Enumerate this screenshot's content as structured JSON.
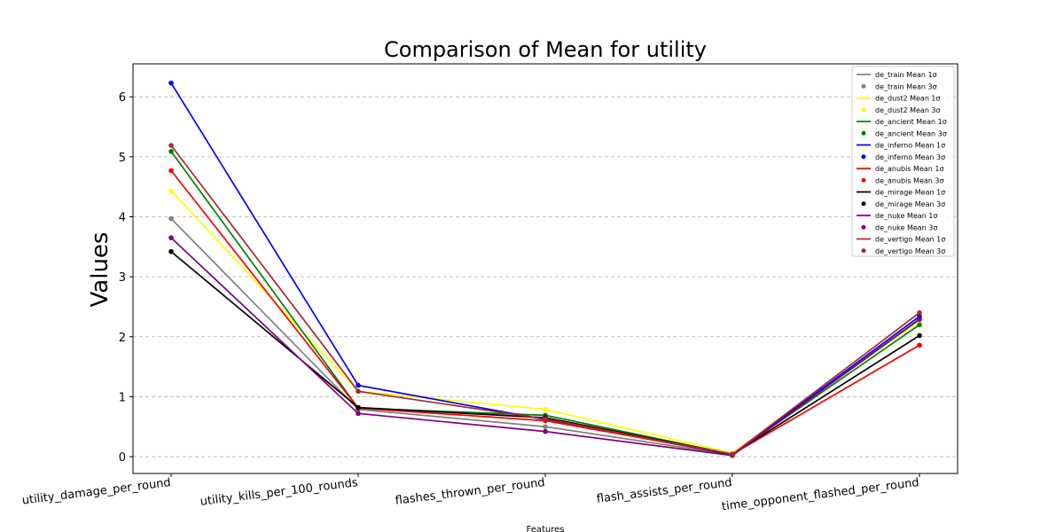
{
  "chart_data": {
    "type": "line",
    "title": "Comparison of Mean for utility",
    "xlabel": "Features",
    "ylabel": "Values",
    "categories": [
      "utility_damage_per_round",
      "utility_kills_per_100_rounds",
      "flashes_thrown_per_round",
      "flash_assists_per_round",
      "time_opponent_flashed_per_round"
    ],
    "ylim": [
      -0.28,
      6.55
    ],
    "yticks": [
      0,
      1,
      2,
      3,
      4,
      5,
      6
    ],
    "grid": "horizontal dashed",
    "legend_position": "top-right",
    "series": [
      {
        "name": "de_train",
        "color": "#808080",
        "values": [
          3.97,
          0.79,
          0.5,
          0.03,
          2.3
        ]
      },
      {
        "name": "de_dust2",
        "color": "#ffff00",
        "values": [
          4.43,
          1.09,
          0.79,
          0.06,
          2.26
        ]
      },
      {
        "name": "de_ancient",
        "color": "#008000",
        "values": [
          5.09,
          0.81,
          0.69,
          0.04,
          2.2
        ]
      },
      {
        "name": "de_inferno",
        "color": "#0000ff",
        "values": [
          6.23,
          1.19,
          0.62,
          0.03,
          2.34
        ]
      },
      {
        "name": "de_anubis",
        "color": "#ff0000",
        "values": [
          4.77,
          0.81,
          0.6,
          0.04,
          1.86
        ]
      },
      {
        "name": "de_mirage",
        "color": "#000000",
        "values": [
          3.42,
          0.82,
          0.65,
          0.04,
          2.02
        ]
      },
      {
        "name": "de_nuke",
        "color": "#800080",
        "values": [
          3.65,
          0.72,
          0.42,
          0.02,
          2.29
        ]
      },
      {
        "name": "de_vertigo",
        "color": "#a52a2a",
        "values": [
          5.19,
          1.09,
          0.63,
          0.04,
          2.4
        ]
      }
    ],
    "legend_entries": [
      "de_train Mean 1σ",
      "de_train Mean 3σ",
      "de_dust2 Mean 1σ",
      "de_dust2 Mean 3σ",
      "de_ancient Mean 1σ",
      "de_ancient Mean 3σ",
      "de_inferno Mean 1σ",
      "de_inferno Mean 3σ",
      "de_anubis Mean 1σ",
      "de_anubis Mean 3σ",
      "de_mirage Mean 1σ",
      "de_mirage Mean 3σ",
      "de_nuke Mean 1σ",
      "de_nuke Mean 3σ",
      "de_vertigo Mean 1σ",
      "de_vertigo Mean 3σ"
    ]
  }
}
